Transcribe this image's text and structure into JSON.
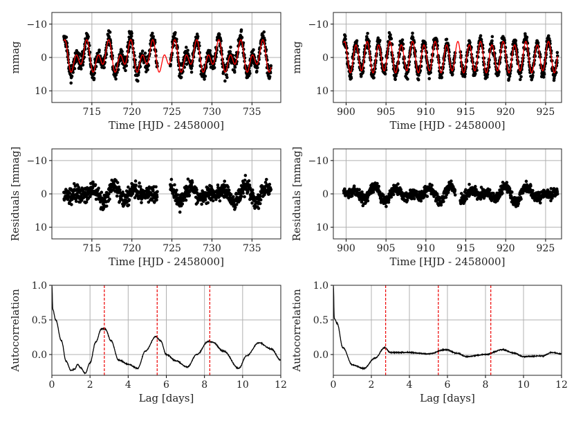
{
  "chart_data": [
    {
      "id": "lc-left",
      "type": "scatter",
      "xlabel": "Time [HJD - 2458000]",
      "ylabel": "mmag",
      "xlim": [
        710,
        738.6
      ],
      "ylim": [
        13.5,
        -13.5
      ],
      "xticks": [
        715,
        720,
        725,
        730,
        735
      ],
      "yticks": [
        -10,
        0,
        10
      ],
      "ytick_labels": [
        "−10",
        "0",
        "10"
      ],
      "data_range": [
        711.5,
        737.4
      ],
      "gap": [
        723.2,
        724.8
      ],
      "model": {
        "components": [
          {
            "period": 2.75,
            "amp": 2.6,
            "phase": 0.3
          },
          {
            "period": 1.375,
            "amp": 3.0,
            "phase": 1.2
          }
        ],
        "color": "#ff0000"
      },
      "noise": 1.6
    },
    {
      "id": "lc-right",
      "type": "scatter",
      "xlabel": "Time [HJD - 2458000]",
      "ylabel": "mmag",
      "xlim": [
        898.4,
        927
      ],
      "ylim": [
        13.5,
        -13.5
      ],
      "xticks": [
        900,
        905,
        910,
        915,
        920,
        925
      ],
      "yticks": [
        -10,
        0,
        10
      ],
      "ytick_labels": [
        "−10",
        "0",
        "10"
      ],
      "data_range": [
        899.7,
        926.5
      ],
      "gap": [
        913.7,
        914.3
      ],
      "model": {
        "components": [
          {
            "period": 1.42,
            "amp": 4.3,
            "phase": 0.5
          },
          {
            "period": 2.84,
            "amp": 0.6,
            "phase": 0
          }
        ],
        "color": "#ff0000"
      },
      "noise": 1.3
    },
    {
      "id": "res-left",
      "type": "scatter",
      "xlabel": "Time [HJD - 2458000]",
      "ylabel": "Residuals [mmag]",
      "xlim": [
        710,
        738.6
      ],
      "ylim": [
        13.5,
        -13.5
      ],
      "xticks": [
        715,
        720,
        725,
        730,
        735
      ],
      "yticks": [
        -10,
        0,
        10
      ],
      "ytick_labels": [
        "−10",
        "0",
        "10"
      ],
      "data_range": [
        711.5,
        737.4
      ],
      "gap": [
        723.2,
        724.8
      ],
      "noise": 1.8
    },
    {
      "id": "res-right",
      "type": "scatter",
      "xlabel": "Time [HJD - 2458000]",
      "ylabel": "Residuals [mmag]",
      "xlim": [
        898.4,
        927
      ],
      "ylim": [
        13.5,
        -13.5
      ],
      "xticks": [
        900,
        905,
        910,
        915,
        920,
        925
      ],
      "yticks": [
        -10,
        0,
        10
      ],
      "ytick_labels": [
        "−10",
        "0",
        "10"
      ],
      "data_range": [
        899.7,
        926.5
      ],
      "gap": [
        913.7,
        914.3
      ],
      "noise": 1.1
    },
    {
      "id": "acf-left",
      "type": "line",
      "xlabel": "Lag [days]",
      "ylabel": "Autocorrelation",
      "xlim": [
        0,
        12
      ],
      "ylim": [
        -0.3,
        1.0
      ],
      "xticks": [
        0,
        2,
        4,
        6,
        8,
        10,
        12
      ],
      "yticks": [
        1.0,
        0.5,
        0.0
      ],
      "ytick_labels": [
        "1.0",
        "0.5",
        "0.0"
      ],
      "peaks": [
        2.75,
        5.52,
        8.28
      ],
      "x": [
        0,
        0.05,
        0.2,
        0.5,
        0.75,
        1,
        1.2,
        1.35,
        1.5,
        1.75,
        2,
        2.3,
        2.6,
        2.8,
        3.1,
        3.5,
        4,
        4.5,
        4.9,
        5.45,
        5.7,
        6,
        6.5,
        7.1,
        7.6,
        8.2,
        8.4,
        9,
        9.8,
        10.2,
        10.85,
        11.5,
        12
      ],
      "y": [
        1,
        0.65,
        0.5,
        0.2,
        -0.1,
        -0.23,
        -0.21,
        -0.14,
        -0.19,
        -0.27,
        -0.12,
        0.18,
        0.37,
        0.37,
        0.2,
        -0.08,
        -0.14,
        -0.2,
        0.05,
        0.26,
        0.2,
        0.0,
        -0.09,
        -0.18,
        0.0,
        0.19,
        0.18,
        0.05,
        -0.2,
        -0.02,
        0.17,
        0.08,
        -0.08
      ],
      "color": "#000000"
    },
    {
      "id": "acf-right",
      "type": "line",
      "xlabel": "Lag [days]",
      "ylabel": "Autocorrelation",
      "xlim": [
        0,
        12
      ],
      "ylim": [
        -0.3,
        1.0
      ],
      "xticks": [
        0,
        2,
        4,
        6,
        8,
        10,
        12
      ],
      "yticks": [
        1.0,
        0.5,
        0.0
      ],
      "ytick_labels": [
        "1.0",
        "0.5",
        "0.0"
      ],
      "peaks": [
        2.75,
        5.52,
        8.28
      ],
      "x": [
        0,
        0.05,
        0.2,
        0.5,
        1,
        1.6,
        2.2,
        2.7,
        3,
        4,
        5,
        5.9,
        6.5,
        7,
        8,
        8.9,
        9.5,
        10,
        11,
        11.5,
        12
      ],
      "y": [
        1,
        0.52,
        0.45,
        0.1,
        -0.15,
        -0.2,
        -0.05,
        0.1,
        0.03,
        0.03,
        0.01,
        0.07,
        0.02,
        -0.03,
        0.0,
        0.07,
        0.02,
        -0.03,
        -0.02,
        0.03,
        0.01
      ],
      "color": "#000000"
    }
  ]
}
